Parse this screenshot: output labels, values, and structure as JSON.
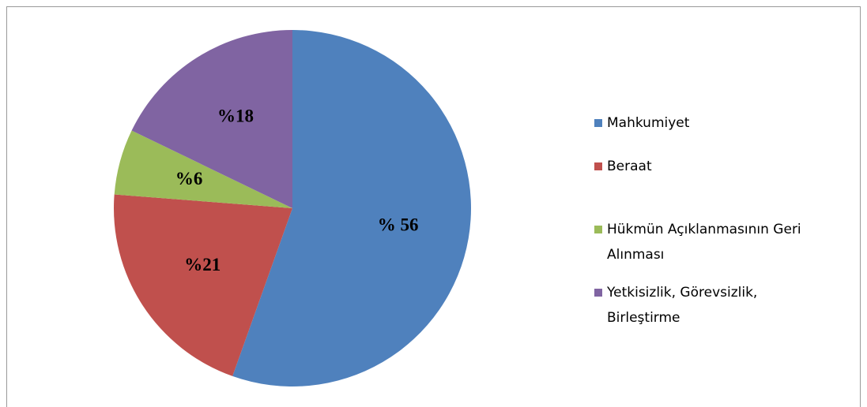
{
  "chart_data": {
    "type": "pie",
    "categories": [
      "Mahkumiyet",
      "Beraat",
      "Hükmün Açıklanmasının Geri Alınması",
      "Yetkisizlik, Görevsizlik, Birleştirme"
    ],
    "values": [
      56,
      21,
      6,
      18
    ],
    "value_labels": [
      "% 56",
      "%21",
      "%6",
      "%18"
    ],
    "colors": [
      "#4f81bd",
      "#c0504d",
      "#9bbb59",
      "#8064a2"
    ],
    "legend": "right"
  }
}
